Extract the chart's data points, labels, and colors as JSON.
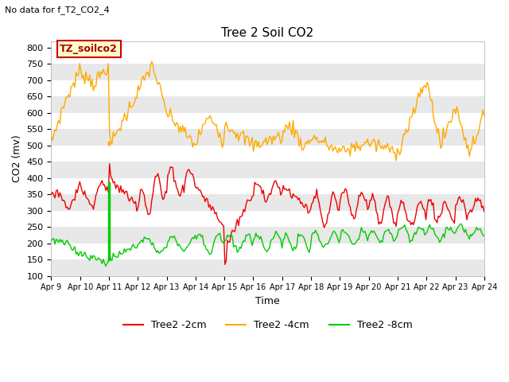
{
  "title": "Tree 2 Soil CO2",
  "subtitle": "No data for f_T2_CO2_4",
  "ylabel": "CO2 (mv)",
  "xlabel": "Time",
  "annotation": "TZ_soilco2",
  "ylim": [
    100,
    820
  ],
  "yticks": [
    100,
    150,
    200,
    250,
    300,
    350,
    400,
    450,
    500,
    550,
    600,
    650,
    700,
    750,
    800
  ],
  "xtick_labels": [
    "Apr 9",
    "Apr 10",
    "Apr 11",
    "Apr 12",
    "Apr 13",
    "Apr 14",
    "Apr 15",
    "Apr 16",
    "Apr 17",
    "Apr 18",
    "Apr 19",
    "Apr 20",
    "Apr 21",
    "Apr 22",
    "Apr 23",
    "Apr 24"
  ],
  "colors": {
    "red": "#ee0000",
    "orange": "#ffaa00",
    "green": "#00cc00",
    "bg_stripe": "#e8e8e8",
    "annotation_bg": "#ffffcc",
    "annotation_border": "#cc0000",
    "annotation_text": "#aa0000"
  },
  "legend_labels": [
    "Tree2 -2cm",
    "Tree2 -4cm",
    "Tree2 -8cm"
  ]
}
